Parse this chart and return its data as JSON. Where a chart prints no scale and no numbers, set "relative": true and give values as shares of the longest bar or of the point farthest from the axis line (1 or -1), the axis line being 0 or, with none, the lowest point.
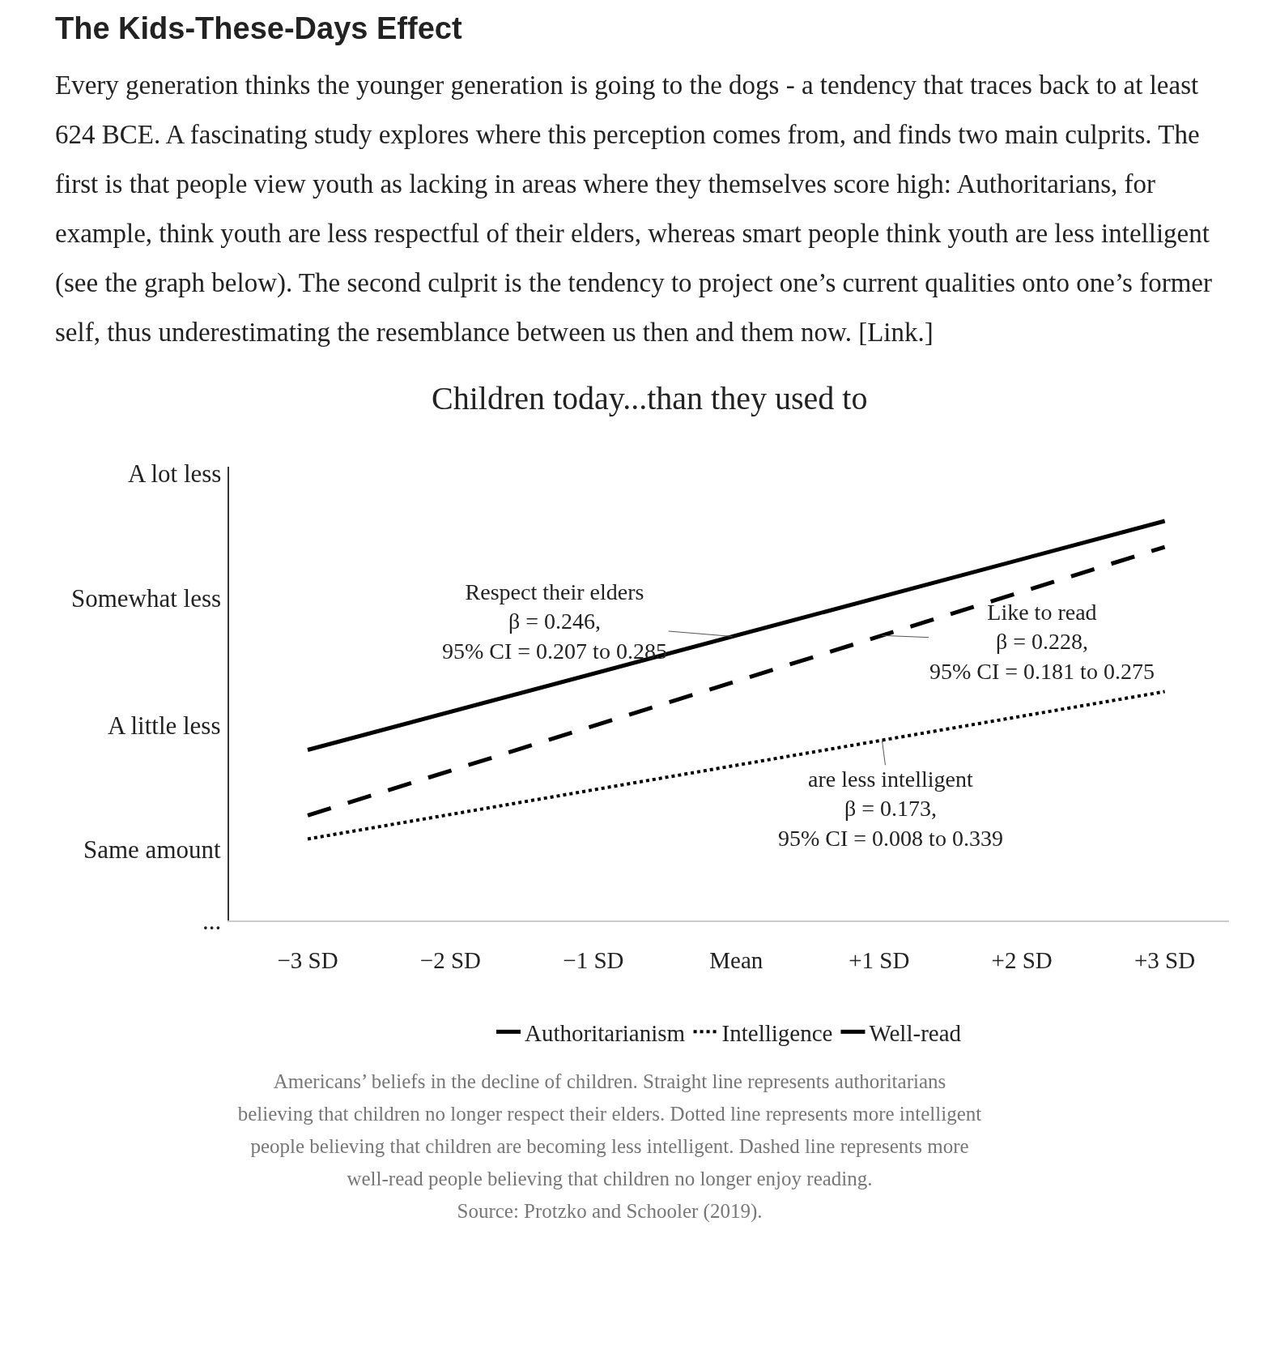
{
  "chart_data": {
    "type": "line",
    "title": "The Kids-These-Days Effect",
    "subtitle": "Every generation thinks the younger generation is going to the dogs - a tendency that traces back to at least 624 BCE. A fascinating study explores where this perception comes from, and finds two main culprits. The first is that people view youth as lacking in areas where they themselves score high: Authoritarians, for example, think youth are less respectful of their elders, whereas smart people think youth are less intelligent (see the graph below). The second culprit is the tendency to project one’s current qualities onto one’s former self, thus underestimating the resemblance between us then and them now. [Link.]",
    "relative": true,
    "x": [
      -3,
      3
    ],
    "series": [
      {
        "name": "Authoritarianism",
        "color": "#000000",
        "values": [
          0.427,
          1.0
        ],
        "line_style": "solid"
      },
      {
        "name": "Intelligence",
        "color": "#000000",
        "values": [
          0.204,
          0.573
        ],
        "line_style": "dotted"
      },
      {
        "name": "Well-read",
        "color": "#000000",
        "values": [
          0.263,
          0.935
        ],
        "line_style": "dashed"
      }
    ],
    "xlim": [
      -3.55,
      3.45
    ],
    "xticks": [
      {
        "value": -3,
        "label": "−3 SD"
      },
      {
        "value": -2,
        "label": "−2 SD"
      },
      {
        "value": -1,
        "label": "−1 SD"
      },
      {
        "value": 0,
        "label": "Mean"
      },
      {
        "value": 1,
        "label": "+1 SD"
      },
      {
        "value": 2,
        "label": "+2 SD"
      },
      {
        "value": 3,
        "label": "+3 SD"
      }
    ],
    "annotations": [
      "Children today...than they used to",
      "A lot less",
      "Somewhat less",
      "A little less",
      "Same amount",
      "...",
      "Respect their elders\nβ = 0.246,\n95% CI = 0.207 to 0.285",
      "Like to read\nβ = 0.228,\n95% CI = 0.181 to 0.275",
      "are less intelligent\nβ = 0.173,\n95% CI = 0.008 to 0.339",
      "Americans’ beliefs in the decline of children. Straight line represents authoritarians believing that children no longer respect their elders. Dotted line represents more intelligent people believing that children are becoming less intelligent. Dashed line represents more well-read people believing that children no longer enjoy reading.\nSource: Protzko and Schooler (2019)."
    ],
    "grid": false,
    "legend": "bottom",
    "marker": "none"
  }
}
